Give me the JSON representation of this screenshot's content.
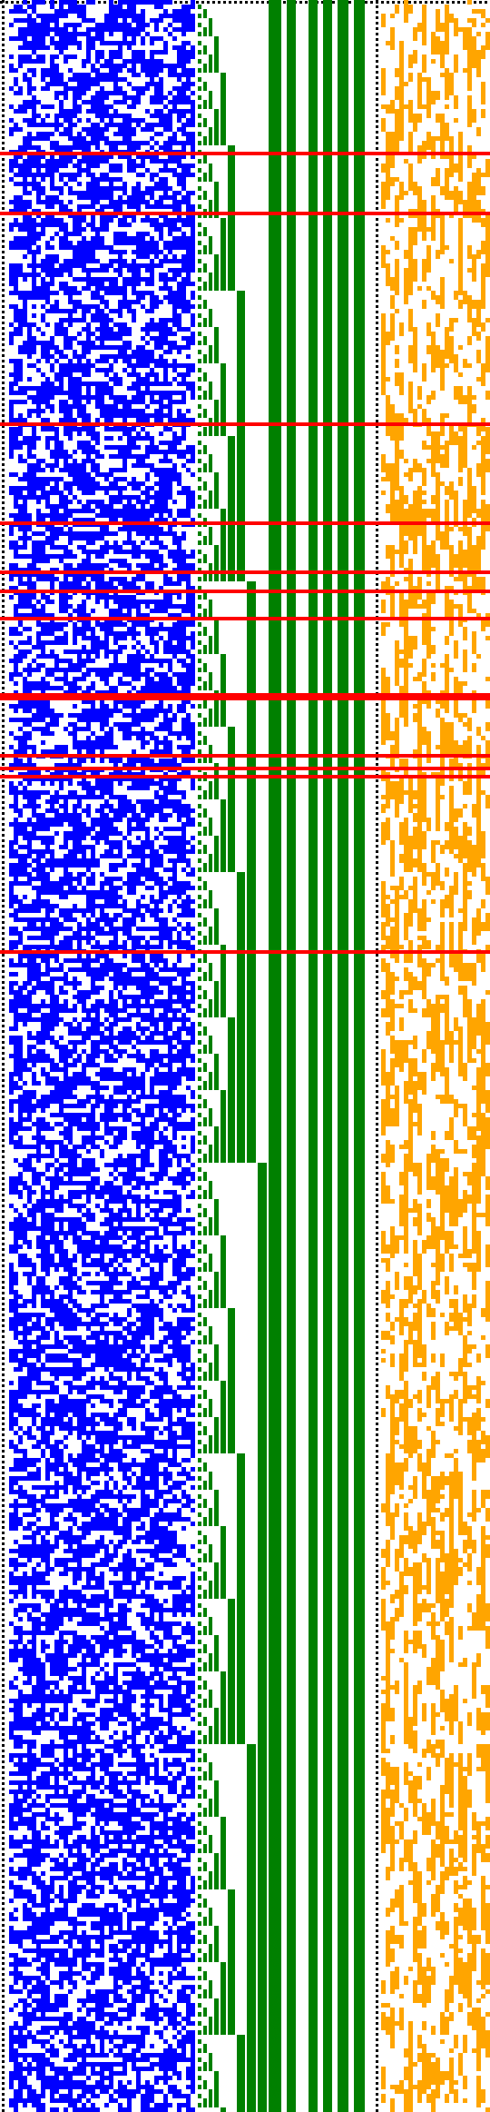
{
  "colors": {
    "background": "#ffffff",
    "border_dots": "#000000",
    "left_block": "#0000ff",
    "staircase": "#008000",
    "right_block": "#ffa500",
    "highlight_rows": "#ff0000"
  },
  "panels": [
    {
      "name": "left-pixel-block",
      "color": "left_block",
      "pattern": "random-binary",
      "density": 0.5
    },
    {
      "name": "staircase-block",
      "color": "staircase",
      "pattern": "binary-counter"
    },
    {
      "name": "right-pixel-block",
      "color": "right_block",
      "pattern": "sparse-vertical-streaks",
      "density": 0.55
    }
  ],
  "highlight_rows_fraction": [
    0.072,
    0.1,
    0.2,
    0.247,
    0.27,
    0.279,
    0.292,
    0.328,
    0.33,
    0.357,
    0.363,
    0.367,
    0.45
  ]
}
